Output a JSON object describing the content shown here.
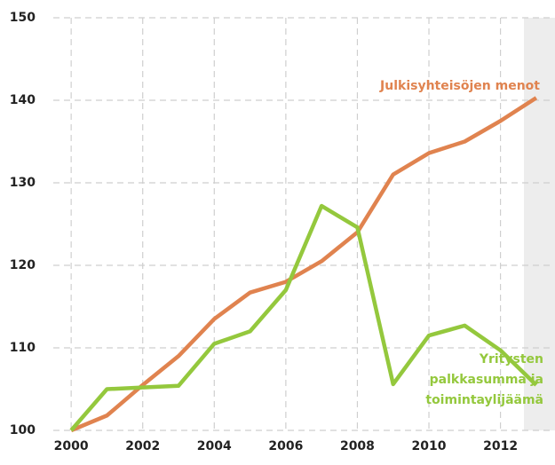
{
  "chart_data": {
    "type": "line",
    "x": [
      2000,
      2001,
      2002,
      2003,
      2004,
      2005,
      2006,
      2007,
      2008,
      2009,
      2010,
      2011,
      2012,
      2013
    ],
    "series": [
      {
        "label_lines": [
          "Julkisyhteisöjen menot"
        ],
        "color": "#e0834f",
        "values": [
          100,
          101.8,
          105.5,
          109,
          113.5,
          116.7,
          118,
          120.5,
          124,
          131,
          133.6,
          135,
          137.5,
          140.3
        ]
      },
      {
        "label_lines": [
          "Yritysten",
          "palkkasumma ja",
          "toimintaylijäämä"
        ],
        "color": "#94c83d",
        "values": [
          100,
          105,
          105.2,
          105.4,
          110.5,
          112,
          117,
          127.2,
          124.6,
          105.6,
          111.5,
          112.7,
          109.7,
          105.5
        ]
      }
    ],
    "xlim": [
      1999.5,
      2013.4
    ],
    "xticks": [
      2000,
      2002,
      2004,
      2006,
      2008,
      2010,
      2012
    ],
    "ylim": [
      100,
      150
    ],
    "yticks": [
      100,
      110,
      120,
      130,
      140,
      150
    ],
    "grid": true
  }
}
